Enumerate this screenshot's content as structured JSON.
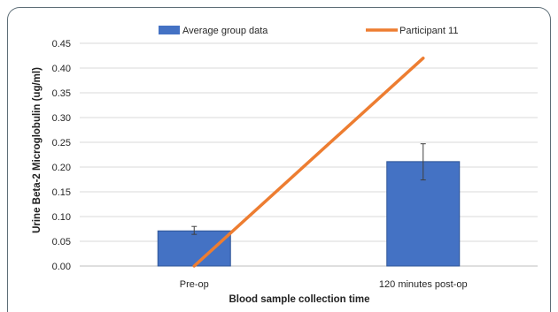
{
  "chart_data": {
    "type": "bar",
    "title": "",
    "xlabel": "Blood sample collection time",
    "ylabel": "Urine Beta-2 Microglobulin (ug/ml)",
    "categories": [
      "Pre-op",
      "120 minutes post-op"
    ],
    "ylim": [
      0,
      0.45
    ],
    "yticks": [
      "0.00",
      "0.05",
      "0.10",
      "0.15",
      "0.20",
      "0.25",
      "0.30",
      "0.35",
      "0.40",
      "0.45"
    ],
    "grid": true,
    "legend_position": "top",
    "series": [
      {
        "name": "Average group data",
        "type": "bar",
        "color": "#4472c4",
        "values": [
          0.071,
          0.211
        ],
        "error_low": [
          0.064,
          0.174
        ],
        "error_high": [
          0.08,
          0.247
        ]
      },
      {
        "name": "Participant 11",
        "type": "line",
        "color": "#ed7d31",
        "values": [
          0.0,
          0.42
        ]
      }
    ]
  }
}
